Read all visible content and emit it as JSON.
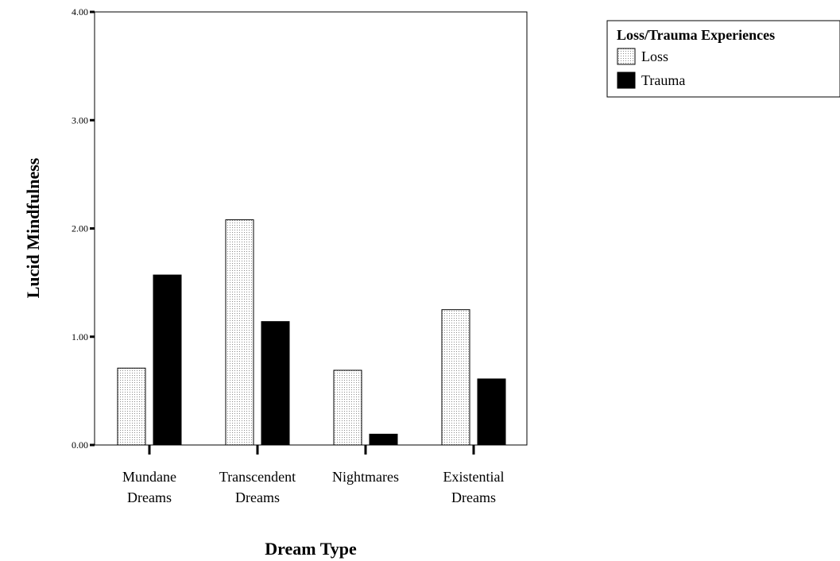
{
  "chart_data": {
    "type": "bar",
    "categories": [
      [
        "Mundane",
        "Dreams"
      ],
      [
        "Transcendent",
        "Dreams"
      ],
      [
        "Nightmares"
      ],
      [
        "Existential",
        "Dreams"
      ]
    ],
    "series": [
      {
        "name": "Loss",
        "values": [
          0.71,
          2.08,
          0.69,
          1.25
        ],
        "pattern": "dotted"
      },
      {
        "name": "Trauma",
        "values": [
          1.57,
          1.14,
          0.1,
          0.61
        ],
        "color": "#000000"
      }
    ],
    "xlabel": "Dream Type",
    "ylabel": "Lucid Mindfulness",
    "ylim": [
      0,
      4
    ],
    "yticks": [
      0,
      1,
      2,
      3,
      4
    ],
    "ytick_labels": [
      "0.00",
      "1.00",
      "2.00",
      "3.00",
      "4.00"
    ],
    "legend_title": "Loss/Trauma Experiences",
    "legend_position": "top-right",
    "grid": false
  }
}
